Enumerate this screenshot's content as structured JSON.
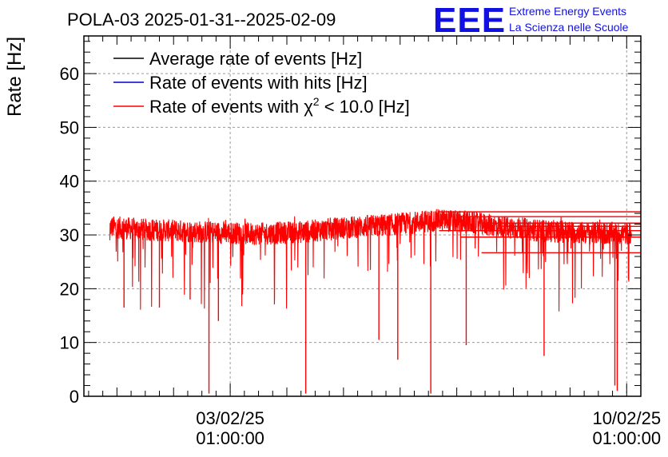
{
  "chart_data": {
    "type": "line",
    "title": "POLA-03 2025-01-31--2025-02-09",
    "ylabel": "Rate [Hz]",
    "xlabel": "",
    "ylim": [
      0,
      67
    ],
    "yticks": [
      0,
      10,
      20,
      30,
      40,
      50,
      60
    ],
    "x_range": [
      "2025-01-31 11:00:00",
      "2025-02-10 07:00:00"
    ],
    "xticks": [
      {
        "x": "2025-02-03 01:00:00",
        "label_line1": "03/02/25",
        "label_line2": "01:00:00"
      },
      {
        "x": "2025-02-10 01:00:00",
        "label_line1": "10/02/25",
        "label_line2": "01:00:00"
      }
    ],
    "grid": true,
    "legend_placement": "top-left",
    "series": [
      {
        "name": "Average rate of events [Hz]",
        "color": "#000000"
      },
      {
        "name": "Rate of events with hits [Hz]",
        "color": "#0000cc"
      },
      {
        "name": "Rate of events with",
        "name_symbol": "χ",
        "name_sup": "2",
        "name_suffix": " < 10.0 [Hz]",
        "color": "#ff0000"
      }
    ],
    "series_x_range": [
      "2025-01-31 22:00:00",
      "2025-02-10 03:00:00"
    ],
    "baseline": [
      {
        "x": "2025-01-31 22:00:00",
        "y": 31.5
      },
      {
        "x": "2025-02-01 12:00:00",
        "y": 31.0
      },
      {
        "x": "2025-02-02 12:00:00",
        "y": 30.6
      },
      {
        "x": "2025-02-03 12:00:00",
        "y": 30.2
      },
      {
        "x": "2025-02-04 06:00:00",
        "y": 30.5
      },
      {
        "x": "2025-02-05 00:00:00",
        "y": 31.3
      },
      {
        "x": "2025-02-06 00:00:00",
        "y": 32.0
      },
      {
        "x": "2025-02-06 18:00:00",
        "y": 32.8
      },
      {
        "x": "2025-02-07 12:00:00",
        "y": 32.0
      },
      {
        "x": "2025-02-08 12:00:00",
        "y": 30.8
      },
      {
        "x": "2025-02-09 12:00:00",
        "y": 30.3
      },
      {
        "x": "2025-02-10 03:00:00",
        "y": 30.3
      }
    ],
    "dips": [
      {
        "x": "2025-02-02 16:00:00",
        "y": 0.5
      },
      {
        "x": "2025-02-04 09:00:00",
        "y": 0.5
      },
      {
        "x": "2025-02-06 14:00:00",
        "y": 0.5
      },
      {
        "x": "2025-02-09 20:00:00",
        "y": 2.0
      },
      {
        "x": "2025-02-09 21:00:00",
        "y": 1.0
      },
      {
        "x": "2025-02-05 16:00:00",
        "y": 10.5
      },
      {
        "x": "2025-02-06 00:00:00",
        "y": 6.8
      },
      {
        "x": "2025-02-07 05:00:00",
        "y": 9.5
      },
      {
        "x": "2025-02-08 14:00:00",
        "y": 7.5
      },
      {
        "x": "2025-02-02 20:00:00",
        "y": 14.0
      },
      {
        "x": "2025-02-01 04:00:00",
        "y": 16.5
      },
      {
        "x": "2025-02-01 19:00:00",
        "y": 16.5
      },
      {
        "x": "2025-02-02 08:00:00",
        "y": 18.0
      }
    ],
    "tail_lines": [
      34.3,
      33.4,
      32.2,
      31.6,
      30.8,
      29.6,
      26.7
    ]
  },
  "logo": {
    "mark": "EEE",
    "line1": "Extreme Energy Events",
    "line2": "La Scienza nelle Scuole",
    "color": "#1010e0"
  }
}
